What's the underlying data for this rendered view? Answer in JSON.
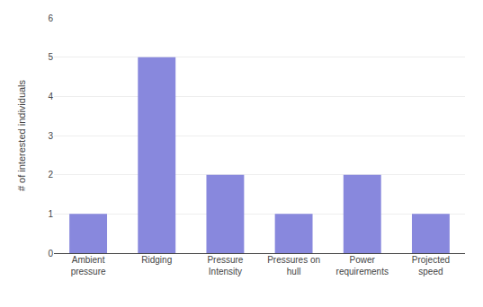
{
  "chart_data": {
    "type": "bar",
    "categories": [
      "Ambient\npressure",
      "Ridging",
      "Pressure\nIntensity",
      "Pressures on\nhull",
      "Power\nrequirements",
      "Projected\nspeed"
    ],
    "values": [
      1,
      5,
      2,
      1,
      2,
      1
    ],
    "color": "#8888dd",
    "ylabel": "# of interested individuals",
    "ylim": [
      0,
      6
    ],
    "yticks": [
      0,
      1,
      2,
      3,
      4,
      5,
      6
    ],
    "grid": true
  }
}
